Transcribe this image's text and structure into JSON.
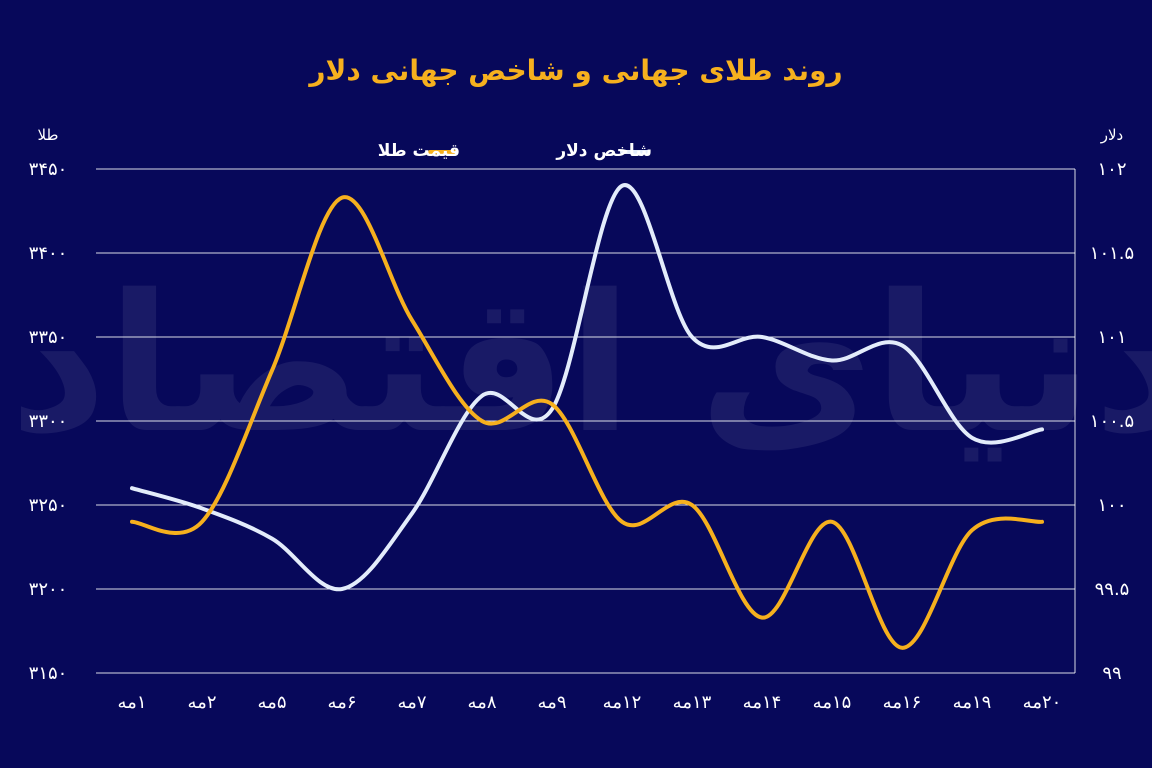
{
  "chart_data": {
    "type": "line",
    "title": "روند طلای جهانی و شاخص جهانی دلار",
    "categories": [
      "۱مه",
      "۲مه",
      "۵مه",
      "۶مه",
      "۷مه",
      "۸مه",
      "۹مه",
      "۱۲مه",
      "۱۳مه",
      "۱۴مه",
      "۱۵مه",
      "۱۶مه",
      "۱۹مه",
      "۲۰مه"
    ],
    "series": [
      {
        "name": "قیمت طلا",
        "axis": "left",
        "color": "#f6b01e",
        "values": [
          3240,
          3240,
          3330,
          3433,
          3360,
          3300,
          3310,
          3240,
          3250,
          3183,
          3240,
          3165,
          3235,
          3240
        ]
      },
      {
        "name": "شاخص دلار",
        "axis": "right",
        "color": "#e3ecfb",
        "values": [
          100.1,
          99.98,
          99.8,
          99.5,
          99.95,
          100.65,
          100.57,
          101.9,
          101,
          101,
          100.86,
          100.95,
          100.4,
          100.45
        ]
      }
    ],
    "y_left": {
      "label": "طلا",
      "range": [
        3150,
        3450
      ],
      "ticks": [
        3450,
        3400,
        3350,
        3300,
        3250,
        3200,
        3150
      ],
      "tick_labels": [
        "۳۴۵۰",
        "۳۴۰۰",
        "۳۳۵۰",
        "۳۳۰۰",
        "۳۲۵۰",
        "۳۲۰۰",
        "۳۱۵۰"
      ]
    },
    "y_right": {
      "label": "دلار",
      "range": [
        99,
        102
      ],
      "ticks": [
        102,
        101.5,
        101,
        100.5,
        100,
        99.5,
        99
      ],
      "tick_labels": [
        "۱۰۲",
        "۱۰۱.۵",
        "۱۰۱",
        "۱۰۰.۵",
        "۱۰۰",
        "۹۹.۵",
        "۹۹"
      ]
    },
    "grid": true,
    "legend_position": "top-center",
    "watermark": "دنیای اقتصاد",
    "background": "#07085a"
  }
}
